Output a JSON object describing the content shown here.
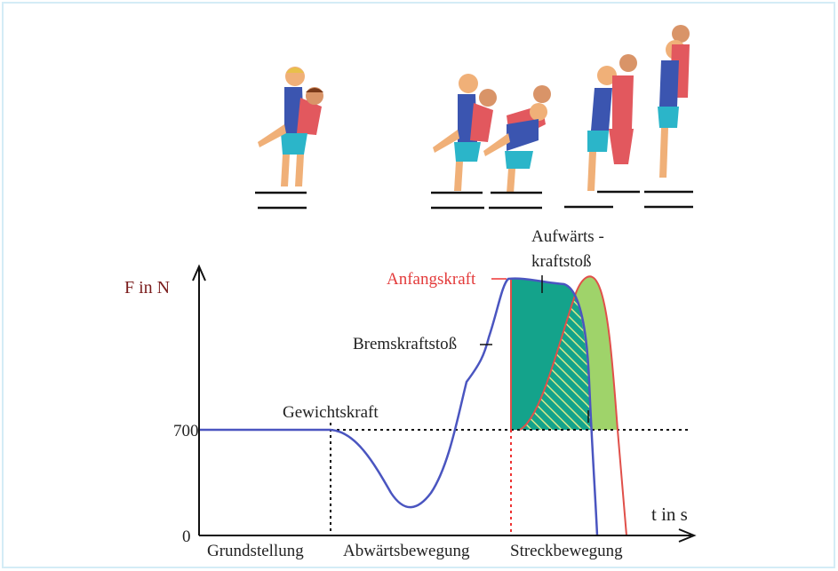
{
  "axis": {
    "y_label": "F in N",
    "x_label": "t in s",
    "y_ticks": [
      "700",
      "0"
    ]
  },
  "annotations": {
    "gewichtskraft": "Gewichtskraft",
    "bremskraftstoss": "Bremskraftstoß",
    "anfangskraft": "Anfangskraft",
    "aufwaerts_1": "Aufwärts -",
    "aufwaerts_2": "kraftstoß"
  },
  "phases": [
    "Grundstellung",
    "Abwärtsbewegung",
    "Streckbewegung"
  ]
}
